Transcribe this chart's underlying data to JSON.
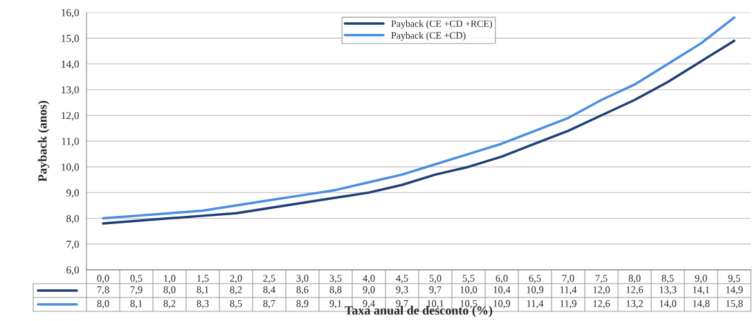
{
  "chart_data": {
    "type": "line",
    "ylabel": "Payback (anos)",
    "xlabel": "Taxa anual de desconto (%)",
    "categories": [
      "0,0",
      "0,5",
      "1,0",
      "1,5",
      "2,0",
      "2,5",
      "3,0",
      "3,5",
      "4,0",
      "4,5",
      "5,0",
      "5,5",
      "6,0",
      "6,5",
      "7,0",
      "7,5",
      "8,0",
      "8,5",
      "9,0",
      "9,5"
    ],
    "series": [
      {
        "name": "Payback (CE +CD +RCE)",
        "color": "#1f3f77",
        "values": [
          7.8,
          7.9,
          8.0,
          8.1,
          8.2,
          8.4,
          8.6,
          8.8,
          9.0,
          9.3,
          9.7,
          10.0,
          10.4,
          10.9,
          11.4,
          12.0,
          12.6,
          13.3,
          14.1,
          14.9
        ],
        "value_labels": [
          "7,8",
          "7,9",
          "8,0",
          "8,1",
          "8,2",
          "8,4",
          "8,6",
          "8,8",
          "9,0",
          "9,3",
          "9,7",
          "10,0",
          "10,4",
          "10,9",
          "11,4",
          "12,0",
          "12,6",
          "13,3",
          "14,1",
          "14,9"
        ]
      },
      {
        "name": "Payback (CE +CD)",
        "color": "#4a8fdf",
        "values": [
          8.0,
          8.1,
          8.2,
          8.3,
          8.5,
          8.7,
          8.9,
          9.1,
          9.4,
          9.7,
          10.1,
          10.5,
          10.9,
          11.4,
          11.9,
          12.6,
          13.2,
          14.0,
          14.8,
          15.8
        ],
        "value_labels": [
          "8,0",
          "8,1",
          "8,2",
          "8,3",
          "8,5",
          "8,7",
          "8,9",
          "9,1",
          "9,4",
          "9,7",
          "10,1",
          "10,5",
          "10,9",
          "11,4",
          "11,9",
          "12,6",
          "13,2",
          "14,0",
          "14,8",
          "15,8"
        ]
      }
    ],
    "ylim": [
      6,
      16
    ],
    "yticks": [
      {
        "value": 6,
        "label": "6,0"
      },
      {
        "value": 7,
        "label": "7,0"
      },
      {
        "value": 8,
        "label": "8,0"
      },
      {
        "value": 9,
        "label": "9,0"
      },
      {
        "value": 10,
        "label": "10,0"
      },
      {
        "value": 11,
        "label": "11,0"
      },
      {
        "value": 12,
        "label": "12,0"
      },
      {
        "value": 13,
        "label": "13,0"
      },
      {
        "value": 14,
        "label": "14,0"
      },
      {
        "value": 15,
        "label": "15,0"
      },
      {
        "value": 16,
        "label": "16,0"
      }
    ],
    "grid": "y",
    "legend": "top",
    "line_style": "solid"
  }
}
